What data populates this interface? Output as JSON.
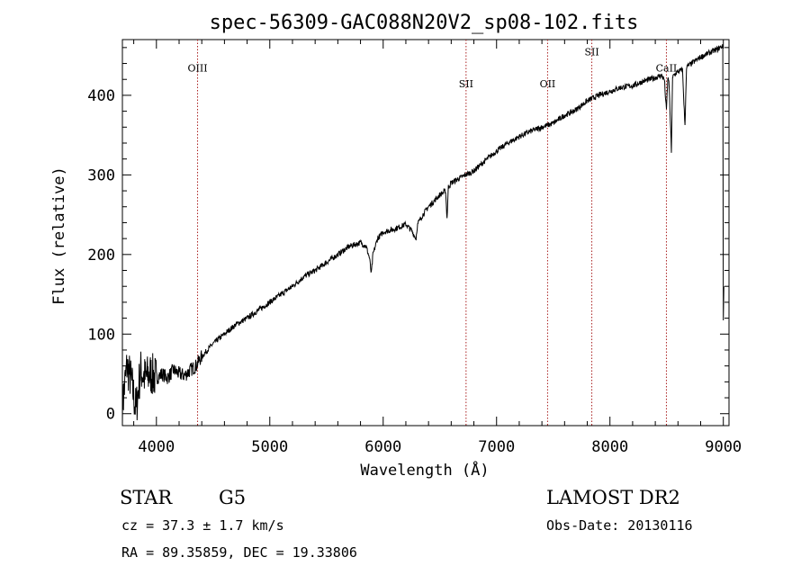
{
  "chart_data": {
    "type": "line",
    "title": "spec-56309-GAC088N20V2_sp08-102.fits",
    "xlabel": "Wavelength (Å)",
    "ylabel": "Flux (relative)",
    "xlim": [
      3700,
      9050
    ],
    "ylim": [
      -15,
      470
    ],
    "x_ticks": [
      4000,
      5000,
      6000,
      7000,
      8000,
      9000
    ],
    "y_ticks": [
      0,
      100,
      200,
      300,
      400
    ],
    "grid": false,
    "series": [
      {
        "x": [
          3700,
          3740,
          3780,
          3820,
          3860,
          3900,
          3950,
          4000,
          4050,
          4100,
          4150,
          4200,
          4250,
          4300,
          4350,
          4390,
          4450,
          4500,
          4600,
          4700,
          4800,
          4900,
          5000,
          5100,
          5200,
          5300,
          5400,
          5500,
          5600,
          5700,
          5800,
          5850,
          5880,
          5895,
          5910,
          5950,
          6000,
          6100,
          6200,
          6250,
          6290,
          6300,
          6310,
          6350,
          6400,
          6500,
          6550,
          6563,
          6575,
          6600,
          6700,
          6800,
          6900,
          7000,
          7100,
          7200,
          7300,
          7400,
          7500,
          7600,
          7650,
          7700,
          7800,
          7900,
          8000,
          8100,
          8200,
          8300,
          8400,
          8450,
          8480,
          8498,
          8510,
          8520,
          8542,
          8552,
          8560,
          8600,
          8640,
          8662,
          8675,
          8700,
          8800,
          8900,
          8950,
          8990,
          8995,
          9000,
          9005
        ],
        "y": [
          10,
          60,
          40,
          5,
          55,
          45,
          50,
          45,
          50,
          45,
          55,
          50,
          48,
          55,
          60,
          70,
          80,
          88,
          100,
          112,
          120,
          130,
          140,
          150,
          160,
          172,
          180,
          190,
          200,
          210,
          215,
          210,
          195,
          175,
          200,
          220,
          228,
          232,
          238,
          230,
          220,
          235,
          240,
          250,
          260,
          275,
          280,
          245,
          285,
          290,
          298,
          305,
          318,
          330,
          340,
          348,
          355,
          360,
          365,
          375,
          378,
          382,
          393,
          400,
          405,
          410,
          412,
          418,
          422,
          425,
          420,
          380,
          420,
          420,
          330,
          420,
          425,
          430,
          432,
          360,
          435,
          438,
          448,
          455,
          458,
          462,
          460,
          120,
          160
        ]
      }
    ],
    "annotations": [
      {
        "label": "OIII",
        "x": 4363,
        "y": 430
      },
      {
        "label": "SII",
        "x": 6731,
        "y": 410
      },
      {
        "label": "OII",
        "x": 7450,
        "y": 410
      },
      {
        "label": "SII",
        "x": 7840,
        "y": 450
      },
      {
        "label": "CaII",
        "x": 8498,
        "y": 430
      }
    ]
  },
  "info": {
    "object_class": "STAR",
    "subclass": "G5",
    "survey": "LAMOST DR2",
    "cz_line": "cz = 37.3 ± 1.7 km/s",
    "obs_date_line": "Obs-Date: 20130116",
    "radec_line": "RA =  89.35859, DEC =  19.33806"
  },
  "colors": {
    "axis": "#000000",
    "spectrum": "#000000",
    "line_marker": "#aa2222"
  }
}
